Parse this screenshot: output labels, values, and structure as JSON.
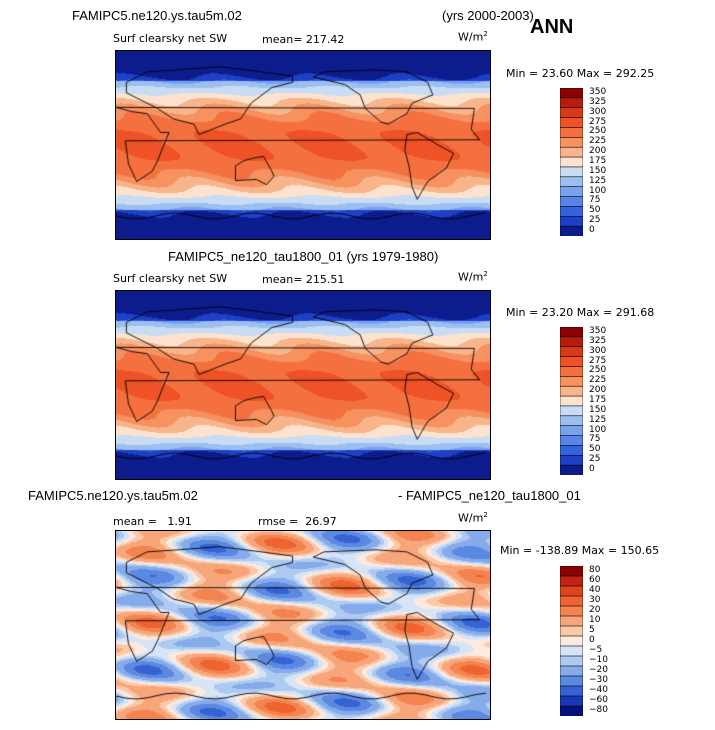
{
  "header": {
    "case_a": "FAMIPC5.ne120.ys.tau5m.02",
    "years_a": "(yrs 2000-2003)",
    "season": "ANN",
    "case_b_title": "FAMIPC5_ne120_tau1800_01 (yrs 1979-1980)",
    "diff_left": "FAMIPC5.ne120.ys.tau5m.02",
    "diff_right": "- FAMIPC5_ne120_tau1800_01"
  },
  "chart_data": [
    {
      "type": "heatmap",
      "variable": "Surf clearsky net SW",
      "units": "W/m",
      "units_exp": "2",
      "mean_label": "mean=",
      "mean": "217.42",
      "min_label": "Min =",
      "min": "23.60",
      "max_label": "Max =",
      "max": "292.25",
      "colorbar_levels": [
        "350",
        "325",
        "300",
        "275",
        "250",
        "225",
        "200",
        "175",
        "150",
        "125",
        "100",
        "75",
        "50",
        "25",
        "0"
      ],
      "colorbar_colors": [
        "#8b0000",
        "#b81c0c",
        "#d73a16",
        "#ee5226",
        "#f4703f",
        "#f69160",
        "#f8b48a",
        "#fde3cf",
        "#c8dcf4",
        "#9dbff0",
        "#7aa2ec",
        "#5784e6",
        "#3563db",
        "#1e40c6",
        "#0c1c8c"
      ]
    },
    {
      "type": "heatmap",
      "variable": "Surf clearsky net SW",
      "units": "W/m",
      "units_exp": "2",
      "mean_label": "mean=",
      "mean": "215.51",
      "min_label": "Min =",
      "min": "23.20",
      "max_label": "Max =",
      "max": "291.68",
      "colorbar_levels": [
        "350",
        "325",
        "300",
        "275",
        "250",
        "225",
        "200",
        "175",
        "150",
        "125",
        "100",
        "75",
        "50",
        "25",
        "0"
      ],
      "colorbar_colors": [
        "#8b0000",
        "#b81c0c",
        "#d73a16",
        "#ee5226",
        "#f4703f",
        "#f69160",
        "#f8b48a",
        "#fde3cf",
        "#c8dcf4",
        "#9dbff0",
        "#7aa2ec",
        "#5784e6",
        "#3563db",
        "#1e40c6",
        "#0c1c8c"
      ]
    },
    {
      "type": "heatmap",
      "variable": "",
      "units": "W/m",
      "units_exp": "2",
      "mean_label": "mean =",
      "mean": "1.91",
      "rmse_label": "rmse =",
      "rmse": "26.97",
      "min_label": "Min =",
      "min": "-138.89",
      "max_label": "Max =",
      "max": "150.65",
      "colorbar_levels": [
        "80",
        "60",
        "40",
        "30",
        "20",
        "10",
        "5",
        "0",
        "−5",
        "−10",
        "−20",
        "−30",
        "−40",
        "−60",
        "−80"
      ],
      "colorbar_colors": [
        "#8b0000",
        "#c0230f",
        "#e0441c",
        "#ee6330",
        "#f4844f",
        "#f7a57a",
        "#fbc9a8",
        "#fde9de",
        "#d5e5f7",
        "#aecaf1",
        "#86abea",
        "#5b88e0",
        "#3563d4",
        "#1838b8",
        "#06127a"
      ]
    }
  ]
}
